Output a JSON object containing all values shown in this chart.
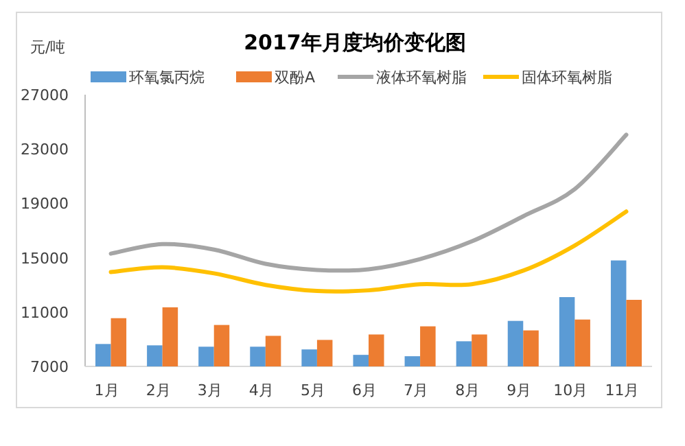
{
  "chart_data": {
    "type": "bar",
    "title": "2017年月度均价变化图",
    "ylabel": "元/吨",
    "categories": [
      "1月",
      "2月",
      "3月",
      "4月",
      "5月",
      "6月",
      "7月",
      "8月",
      "9月",
      "10月",
      "11月"
    ],
    "series": [
      {
        "name": "环氧氯丙烷",
        "color": "#5b9bd5",
        "values": [
          8650,
          8550,
          8450,
          8450,
          8250,
          7850,
          7750,
          8850,
          10350,
          12100,
          14800
        ]
      },
      {
        "name": "双酚A",
        "color": "#ed7d31",
        "values": [
          10550,
          11350,
          10050,
          9250,
          8950,
          9350,
          9950,
          9350,
          9650,
          10450,
          11900
        ]
      },
      {
        "name": "液体环氧树脂",
        "type": "line",
        "color": "#a5a5a5",
        "values": [
          15300,
          16000,
          15600,
          14550,
          14100,
          14150,
          14900,
          16200,
          18050,
          20050,
          24050
        ]
      },
      {
        "name": "固体环氧树脂",
        "type": "line",
        "color": "#ffc000",
        "values": [
          13950,
          14300,
          13850,
          13000,
          12550,
          12600,
          13050,
          13050,
          14050,
          15900,
          18400
        ]
      }
    ],
    "ylim": [
      7000,
      27000
    ],
    "yticks": [
      7000,
      11000,
      15000,
      19000,
      23000,
      27000
    ],
    "grid": false,
    "legend": "top",
    "marker": "none",
    "line_style": "solid"
  }
}
